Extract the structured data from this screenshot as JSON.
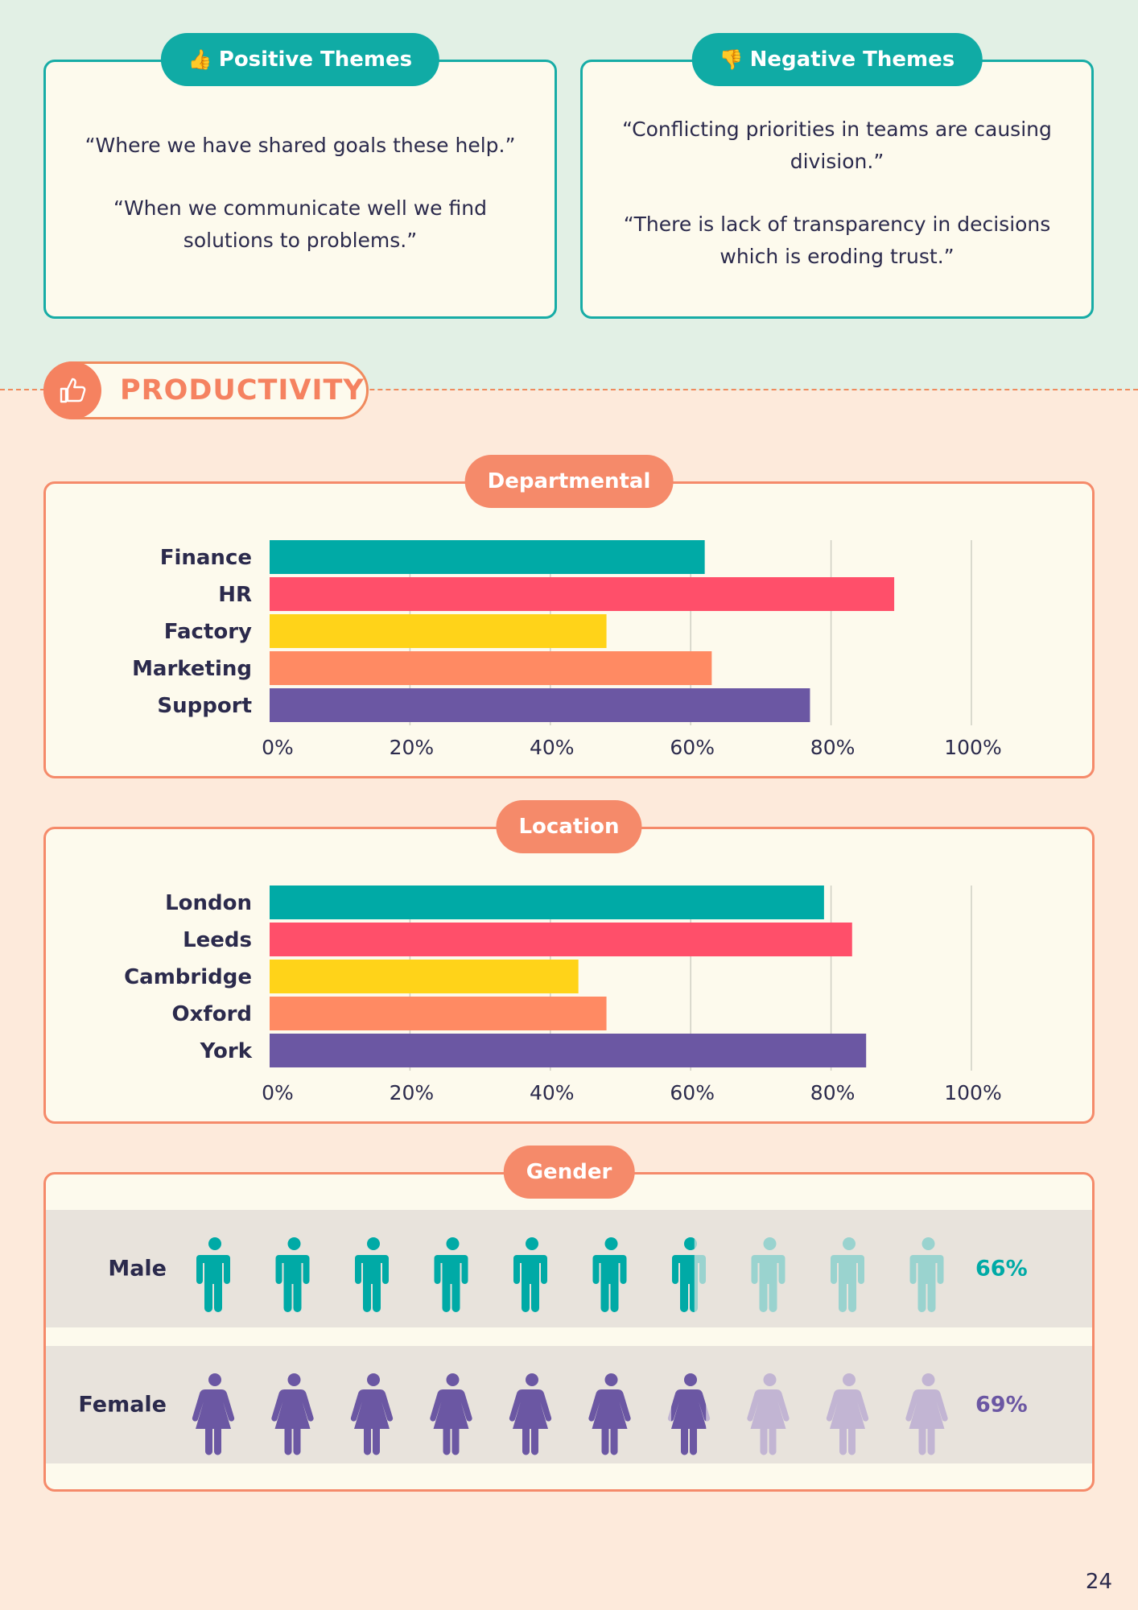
{
  "themes": {
    "positive": {
      "title": "Positive Themes",
      "icon": "thumbs-up-icon",
      "quotes": [
        "“Where we have shared goals these help.”",
        "“When we communicate well we find solutions to problems.”"
      ]
    },
    "negative": {
      "title": "Negative Themes",
      "icon": "thumbs-down-icon",
      "quotes": [
        "“Conflicting priorities in teams are causing division.”",
        "“There is lack of transparency in decisions which is eroding trust.”"
      ]
    }
  },
  "section": {
    "title": "PRODUCTIVITY",
    "icon": "thumbs-up-icon"
  },
  "colors": {
    "teal": "#00aaa6",
    "pink": "#ff4f6a",
    "yellow": "#ffd319",
    "orange": "#ff8a63",
    "purple": "#6b57a3",
    "teal_faded": "#9ad3cf",
    "purple_faded": "#c2b5d3"
  },
  "chart_data": [
    {
      "type": "bar",
      "orientation": "horizontal",
      "title": "Departmental",
      "categories": [
        "Finance",
        "HR",
        "Factory",
        "Marketing",
        "Support"
      ],
      "values": [
        62,
        89,
        48,
        63,
        77
      ],
      "colors": [
        "#00aaa6",
        "#ff4f6a",
        "#ffd319",
        "#ff8a63",
        "#6b57a3"
      ],
      "xlim": [
        0,
        100
      ],
      "xticks": [
        "0%",
        "20%",
        "40%",
        "60%",
        "80%",
        "100%"
      ],
      "unit": "%",
      "grid": true
    },
    {
      "type": "bar",
      "orientation": "horizontal",
      "title": "Location",
      "categories": [
        "London",
        "Leeds",
        "Cambridge",
        "Oxford",
        "York"
      ],
      "values": [
        79,
        83,
        44,
        48,
        85
      ],
      "colors": [
        "#00aaa6",
        "#ff4f6a",
        "#ffd319",
        "#ff8a63",
        "#6b57a3"
      ],
      "xlim": [
        0,
        100
      ],
      "xticks": [
        "0%",
        "20%",
        "40%",
        "60%",
        "80%",
        "100%"
      ],
      "unit": "%",
      "grid": true
    },
    {
      "type": "pictograph",
      "title": "Gender",
      "icons_total": 10,
      "rows": [
        {
          "label": "Male",
          "value": 66,
          "display": "66%",
          "icon": "male-person-icon",
          "color": "#00aaa6",
          "faded_color": "#9ad3cf"
        },
        {
          "label": "Female",
          "value": 69,
          "display": "69%",
          "icon": "female-person-icon",
          "color": "#6b57a3",
          "faded_color": "#c2b5d3"
        }
      ]
    }
  ],
  "page_number": "24"
}
